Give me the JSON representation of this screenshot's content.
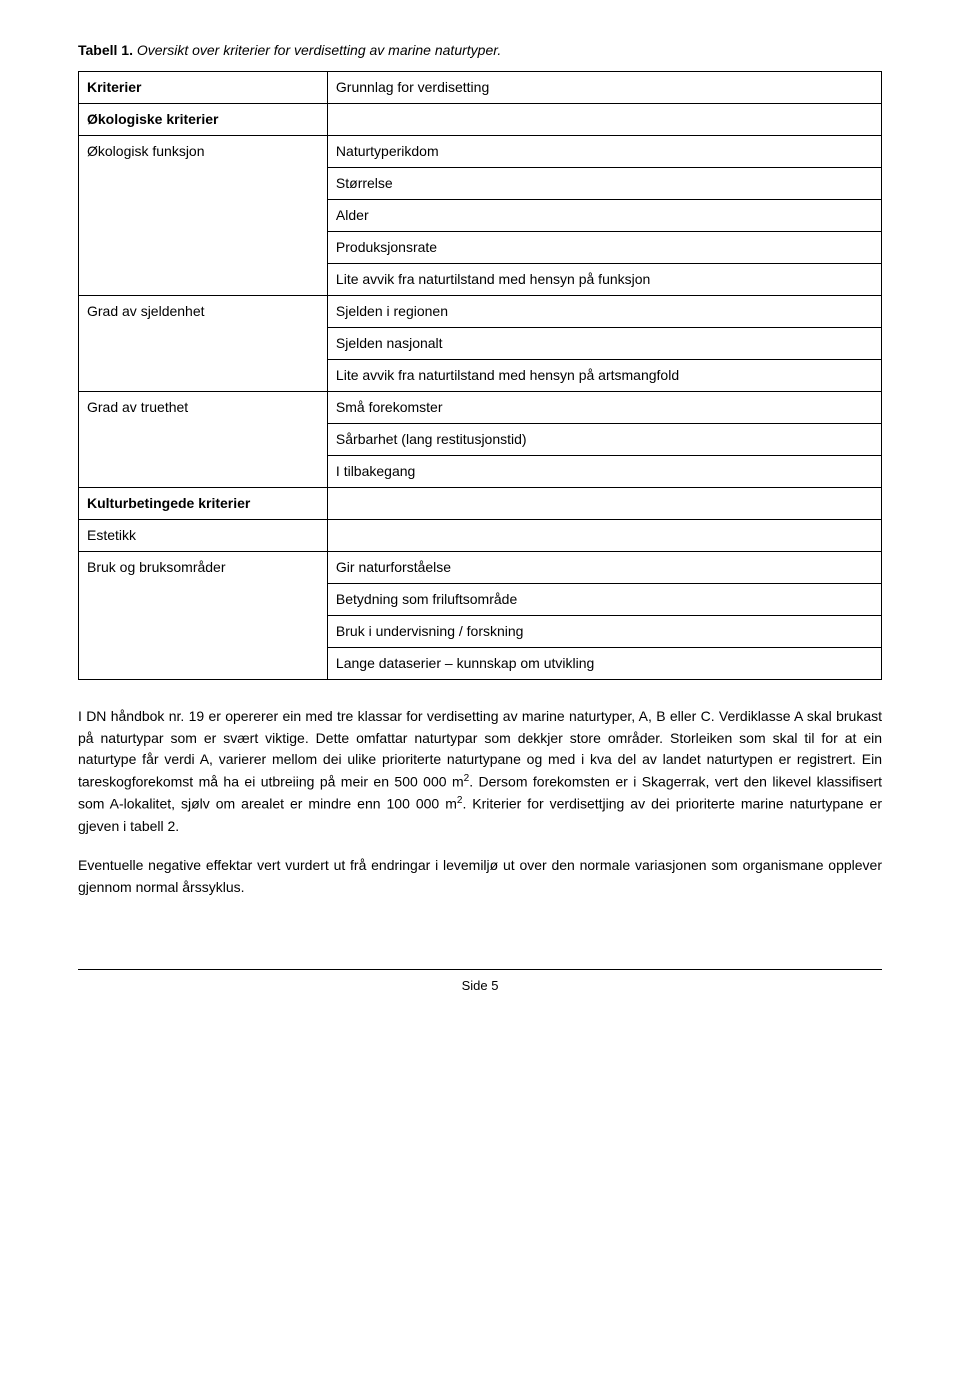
{
  "caption": {
    "label": "Tabell 1.",
    "text": " Oversikt over kriterier for verdisetting av marine naturtyper."
  },
  "table": {
    "rows": [
      {
        "left": "Kriterier",
        "right": "Grunnlag for verdisetting",
        "leftBold": true,
        "rightBold": false
      },
      {
        "left": "Økologiske kriterier",
        "right": "",
        "leftBold": true,
        "spanEmpty": true
      },
      {
        "left": "Økologisk funksjon",
        "right": "Naturtyperikdom"
      },
      {
        "left": "",
        "right": "Størrelse"
      },
      {
        "left": "",
        "right": "Alder"
      },
      {
        "left": "",
        "right": "Produksjonsrate"
      },
      {
        "left": "",
        "right": "Lite avvik fra naturtilstand med hensyn på funksjon"
      },
      {
        "left": "Grad av sjeldenhet",
        "right": "Sjelden i regionen"
      },
      {
        "left": "",
        "right": "Sjelden nasjonalt"
      },
      {
        "left": "",
        "right": "Lite avvik fra naturtilstand med hensyn på artsmangfold"
      },
      {
        "left": "Grad av truethet",
        "right": "Små forekomster"
      },
      {
        "left": "",
        "right": "Sårbarhet (lang restitusjonstid)"
      },
      {
        "left": "",
        "right": "I tilbakegang"
      },
      {
        "left": "Kulturbetingede kriterier",
        "right": "",
        "leftBold": true,
        "spanEmpty": true
      },
      {
        "left": "Estetikk",
        "right": ""
      },
      {
        "left": "Bruk og bruksområder",
        "right": "Gir naturforståelse"
      },
      {
        "left": "",
        "right": "Betydning som friluftsområde"
      },
      {
        "left": "",
        "right": "Bruk i undervisning / forskning"
      },
      {
        "left": "",
        "right": "Lange dataserier – kunnskap om utvikling"
      }
    ]
  },
  "paragraphs": {
    "p1a": "I DN håndbok nr. 19 er opererer ein med tre klassar for verdisetting av marine naturtyper, A, B eller C. Verdiklasse A skal brukast på naturtypar som er svært viktige. Dette omfattar naturtypar som dekkjer store områder. Storleiken som skal til for at ein naturtype får verdi A, varierer mellom dei ulike prioriterte naturtypane og med i kva del av landet naturtypen er registrert. Ein tareskogforekomst må ha ei utbreiing på meir en 500 000 m",
    "p1b": ". Dersom forekomsten er i Skagerrak, vert den likevel klassifisert som A-lokalitet, sjølv om arealet er mindre enn 100 000 m",
    "p1c": ". Kriterier for verdisettjing av dei prioriterte marine naturtypane er gjeven i tabell 2.",
    "sup": "2",
    "p2": "Eventuelle negative effektar vert vurdert ut frå endringar i levemiljø ut over den normale variasjonen som organismane opplever gjennom normal årssyklus."
  },
  "footer": "Side 5"
}
